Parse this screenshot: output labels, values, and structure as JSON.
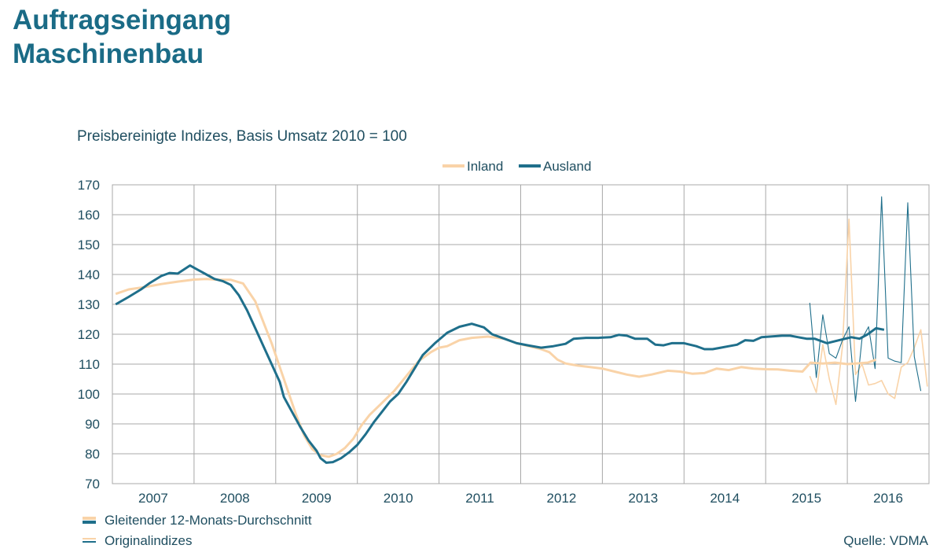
{
  "page": {
    "title_line1": "Auftragseingang",
    "title_line2": "Maschinenbau",
    "subtitle": "Preisbereinigte Indizes, Basis Umsatz 2010 = 100",
    "note_smoothed": "Gleitender 12-Monats-Durchschnitt",
    "note_original": "Originalindizes",
    "source": "Quelle: VDMA"
  },
  "colors": {
    "inland": "#f9d3a8",
    "ausland": "#1f6f8b",
    "title": "#1a6b86",
    "grid": "#a8a8a8"
  },
  "chart_data": {
    "type": "line",
    "title": "Preisbereinigte Indizes, Basis Umsatz 2010 = 100",
    "xlabel": "",
    "ylabel": "",
    "x_unit": "year",
    "xlim": [
      2006.5,
      2016.5
    ],
    "ylim": [
      70,
      170
    ],
    "y_ticks": [
      70,
      80,
      90,
      100,
      110,
      120,
      130,
      140,
      150,
      160,
      170
    ],
    "x_tick_labels": [
      "2007",
      "2008",
      "2009",
      "2010",
      "2011",
      "2012",
      "2013",
      "2014",
      "2015",
      "2016"
    ],
    "grid": true,
    "legend": {
      "position": "top-center",
      "entries": [
        "Inland",
        "Ausland"
      ]
    },
    "series": [
      {
        "name": "Inland",
        "kind": "Gleitender 12-Monats-Durchschnitt",
        "points": [
          [
            2006.54,
            133.5
          ],
          [
            2006.7,
            135
          ],
          [
            2006.9,
            135.8
          ],
          [
            2007.1,
            136.8
          ],
          [
            2007.3,
            137.6
          ],
          [
            2007.5,
            138.3
          ],
          [
            2007.65,
            138.5
          ],
          [
            2007.8,
            138.2
          ],
          [
            2007.95,
            138.2
          ],
          [
            2008.1,
            137
          ],
          [
            2008.25,
            131
          ],
          [
            2008.35,
            124
          ],
          [
            2008.45,
            117
          ],
          [
            2008.55,
            109
          ],
          [
            2008.65,
            101
          ],
          [
            2008.75,
            93
          ],
          [
            2008.85,
            86
          ],
          [
            2008.95,
            81.5
          ],
          [
            2009.05,
            79.5
          ],
          [
            2009.15,
            79
          ],
          [
            2009.25,
            80
          ],
          [
            2009.35,
            82
          ],
          [
            2009.45,
            85
          ],
          [
            2009.55,
            89.5
          ],
          [
            2009.65,
            93
          ],
          [
            2009.8,
            97
          ],
          [
            2009.95,
            101
          ],
          [
            2010.1,
            106
          ],
          [
            2010.25,
            111
          ],
          [
            2010.4,
            114
          ],
          [
            2010.5,
            115.5
          ],
          [
            2010.6,
            116
          ],
          [
            2010.75,
            118
          ],
          [
            2010.9,
            118.8
          ],
          [
            2011.1,
            119.2
          ],
          [
            2011.3,
            118.5
          ],
          [
            2011.45,
            117
          ],
          [
            2011.6,
            116
          ],
          [
            2011.75,
            115
          ],
          [
            2011.85,
            114
          ],
          [
            2011.95,
            111.5
          ],
          [
            2012.05,
            110.2
          ],
          [
            2012.2,
            109.5
          ],
          [
            2012.35,
            109
          ],
          [
            2012.5,
            108.5
          ],
          [
            2012.65,
            107.5
          ],
          [
            2012.8,
            106.5
          ],
          [
            2012.95,
            105.8
          ],
          [
            2013.1,
            106.5
          ],
          [
            2013.3,
            107.8
          ],
          [
            2013.45,
            107.5
          ],
          [
            2013.6,
            106.8
          ],
          [
            2013.75,
            107
          ],
          [
            2013.9,
            108.5
          ],
          [
            2014.05,
            108
          ],
          [
            2014.2,
            109
          ],
          [
            2014.35,
            108.5
          ],
          [
            2014.5,
            108.3
          ],
          [
            2014.65,
            108.2
          ],
          [
            2014.8,
            107.8
          ],
          [
            2014.95,
            107.5
          ],
          [
            2015.05,
            110.5
          ],
          [
            2015.2,
            110.2
          ],
          [
            2015.35,
            110.5
          ],
          [
            2015.5,
            110
          ],
          [
            2015.65,
            110.3
          ],
          [
            2015.75,
            110.5
          ],
          [
            2015.85,
            111.5
          ]
        ]
      },
      {
        "name": "Ausland",
        "kind": "Gleitender 12-Monats-Durchschnitt",
        "points": [
          [
            2006.54,
            130
          ],
          [
            2006.7,
            132.5
          ],
          [
            2006.85,
            135
          ],
          [
            2006.95,
            137
          ],
          [
            2007.1,
            139.5
          ],
          [
            2007.2,
            140.5
          ],
          [
            2007.3,
            140.3
          ],
          [
            2007.45,
            143
          ],
          [
            2007.55,
            141.5
          ],
          [
            2007.65,
            140
          ],
          [
            2007.75,
            138.5
          ],
          [
            2007.85,
            137.8
          ],
          [
            2007.95,
            136.5
          ],
          [
            2008.05,
            133
          ],
          [
            2008.15,
            128
          ],
          [
            2008.25,
            122
          ],
          [
            2008.35,
            116
          ],
          [
            2008.45,
            110
          ],
          [
            2008.55,
            104
          ],
          [
            2008.6,
            99
          ],
          [
            2008.7,
            94
          ],
          [
            2008.8,
            89
          ],
          [
            2008.9,
            84.5
          ],
          [
            2009.0,
            81
          ],
          [
            2009.05,
            78.5
          ],
          [
            2009.12,
            77
          ],
          [
            2009.2,
            77.2
          ],
          [
            2009.3,
            78.5
          ],
          [
            2009.4,
            80.5
          ],
          [
            2009.5,
            83
          ],
          [
            2009.6,
            86.5
          ],
          [
            2009.7,
            90.5
          ],
          [
            2009.8,
            94
          ],
          [
            2009.9,
            97.5
          ],
          [
            2010.0,
            100
          ],
          [
            2010.1,
            104
          ],
          [
            2010.2,
            108.5
          ],
          [
            2010.3,
            113
          ],
          [
            2010.45,
            117
          ],
          [
            2010.6,
            120.5
          ],
          [
            2010.75,
            122.5
          ],
          [
            2010.9,
            123.5
          ],
          [
            2011.05,
            122.3
          ],
          [
            2011.15,
            120
          ],
          [
            2011.3,
            118.5
          ],
          [
            2011.45,
            117
          ],
          [
            2011.6,
            116.2
          ],
          [
            2011.75,
            115.5
          ],
          [
            2011.9,
            116
          ],
          [
            2012.05,
            116.8
          ],
          [
            2012.15,
            118.5
          ],
          [
            2012.3,
            118.8
          ],
          [
            2012.45,
            118.8
          ],
          [
            2012.6,
            119
          ],
          [
            2012.7,
            119.8
          ],
          [
            2012.8,
            119.5
          ],
          [
            2012.9,
            118.5
          ],
          [
            2013.05,
            118.5
          ],
          [
            2013.15,
            116.5
          ],
          [
            2013.25,
            116.3
          ],
          [
            2013.35,
            117
          ],
          [
            2013.5,
            117
          ],
          [
            2013.65,
            116
          ],
          [
            2013.75,
            115
          ],
          [
            2013.85,
            115
          ],
          [
            2013.95,
            115.5
          ],
          [
            2014.05,
            116
          ],
          [
            2014.15,
            116.5
          ],
          [
            2014.25,
            118
          ],
          [
            2014.35,
            117.8
          ],
          [
            2014.45,
            119
          ],
          [
            2014.55,
            119.2
          ],
          [
            2014.7,
            119.5
          ],
          [
            2014.8,
            119.5
          ],
          [
            2014.9,
            119
          ],
          [
            2015.0,
            118.5
          ],
          [
            2015.1,
            118.5
          ],
          [
            2015.25,
            117
          ],
          [
            2015.4,
            118
          ],
          [
            2015.55,
            119
          ],
          [
            2015.65,
            118.5
          ],
          [
            2015.75,
            120
          ],
          [
            2015.85,
            122
          ],
          [
            2015.95,
            121.5
          ]
        ]
      },
      {
        "name": "Inland",
        "kind": "Originalindizes",
        "points": [
          [
            2015.04,
            106
          ],
          [
            2015.12,
            100.5
          ],
          [
            2015.2,
            116.5
          ],
          [
            2015.28,
            105
          ],
          [
            2015.36,
            96.5
          ],
          [
            2015.44,
            116
          ],
          [
            2015.52,
            158.5
          ],
          [
            2015.6,
            106.5
          ],
          [
            2015.68,
            110
          ],
          [
            2015.76,
            103
          ],
          [
            2015.84,
            103.5
          ],
          [
            2015.92,
            104.5
          ],
          [
            2016.0,
            100
          ],
          [
            2016.08,
            98.5
          ],
          [
            2016.16,
            109
          ],
          [
            2016.24,
            110.5
          ],
          [
            2016.32,
            115.5
          ],
          [
            2016.4,
            121.5
          ],
          [
            2016.48,
            102.5
          ]
        ]
      },
      {
        "name": "Ausland",
        "kind": "Originalindizes",
        "points": [
          [
            2015.04,
            130.5
          ],
          [
            2015.12,
            105.5
          ],
          [
            2015.2,
            126.5
          ],
          [
            2015.28,
            113.5
          ],
          [
            2015.36,
            112
          ],
          [
            2015.44,
            118
          ],
          [
            2015.52,
            122.5
          ],
          [
            2015.6,
            97.5
          ],
          [
            2015.68,
            118.5
          ],
          [
            2015.76,
            122.5
          ],
          [
            2015.84,
            108.5
          ],
          [
            2015.92,
            166
          ],
          [
            2016.0,
            112
          ],
          [
            2016.08,
            111
          ],
          [
            2016.16,
            110.5
          ],
          [
            2016.24,
            164
          ],
          [
            2016.32,
            112.5
          ],
          [
            2016.4,
            101
          ]
        ]
      }
    ]
  }
}
